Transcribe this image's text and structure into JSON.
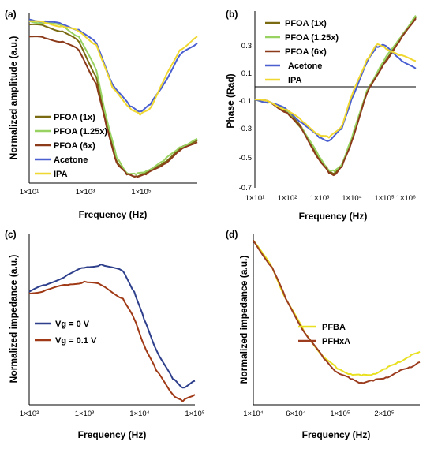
{
  "colors": {
    "pfoa_1x": "#7a6a12",
    "pfoa_125x": "#98d260",
    "pfoa_6x": "#8b3a1a",
    "acetone": "#4a5fd0",
    "ipa": "#f0d830",
    "vg0": "#2e3f8c",
    "vg01": "#a03a16",
    "pfba": "#e8e020",
    "pfhxa": "#9b3d1e",
    "spike_noise": "#e86a9a"
  },
  "chart_data": [
    {
      "panel": "(a)",
      "type": "line",
      "xscale": "log",
      "xlim": [
        10,
        1000000
      ],
      "ylim": [
        0,
        1
      ],
      "xlabel": "Frequency (Hz)",
      "ylabel": "Normalized amplitude (a.u.)",
      "xticks": [
        "1×10¹",
        "1×10³",
        "1×10⁵"
      ],
      "legend": [
        "PFOA (1x)",
        "PFOA (1.25x)",
        "PFOA (6x)",
        "Acetone",
        "IPA"
      ],
      "series": [
        {
          "name": "PFOA (1x)",
          "x": [
            10,
            30,
            100,
            300,
            1000,
            2000,
            4000,
            8000,
            15000,
            30000,
            100000,
            300000,
            1000000
          ],
          "y": [
            0.93,
            0.92,
            0.89,
            0.83,
            0.62,
            0.35,
            0.13,
            0.05,
            0.04,
            0.06,
            0.12,
            0.2,
            0.25
          ]
        },
        {
          "name": "PFOA (1.25x)",
          "x": [
            10,
            30,
            100,
            300,
            1000,
            2000,
            4000,
            8000,
            15000,
            30000,
            100000,
            300000,
            1000000
          ],
          "y": [
            0.95,
            0.94,
            0.92,
            0.86,
            0.66,
            0.38,
            0.15,
            0.06,
            0.05,
            0.07,
            0.13,
            0.21,
            0.26
          ]
        },
        {
          "name": "PFOA (6x)",
          "x": [
            10,
            30,
            100,
            300,
            1000,
            2000,
            4000,
            8000,
            15000,
            30000,
            100000,
            300000,
            1000000
          ],
          "y": [
            0.86,
            0.85,
            0.83,
            0.78,
            0.58,
            0.33,
            0.12,
            0.05,
            0.04,
            0.05,
            0.11,
            0.19,
            0.24
          ]
        },
        {
          "name": "Acetone",
          "x": [
            10,
            30,
            100,
            300,
            1000,
            3000,
            10000,
            20000,
            40000,
            100000,
            300000,
            1000000
          ],
          "y": [
            0.96,
            0.95,
            0.93,
            0.9,
            0.82,
            0.58,
            0.45,
            0.42,
            0.46,
            0.58,
            0.75,
            0.82
          ]
        },
        {
          "name": "IPA",
          "x": [
            10,
            30,
            100,
            300,
            1000,
            3000,
            10000,
            20000,
            40000,
            100000,
            300000,
            1000000
          ],
          "y": [
            0.95,
            0.94,
            0.92,
            0.89,
            0.81,
            0.56,
            0.44,
            0.4,
            0.44,
            0.6,
            0.78,
            0.86
          ]
        }
      ]
    },
    {
      "panel": "(b)",
      "type": "line",
      "xscale": "log",
      "xlim": [
        10,
        1000000
      ],
      "ylim": [
        -0.7,
        0.5
      ],
      "xlabel": "Frequency (Hz)",
      "ylabel": "Phase (Rad)",
      "xticks": [
        "1×10¹",
        "1×10²",
        "1×10³",
        "1×10⁴",
        "1×10⁵",
        "1×10⁶"
      ],
      "yticks": [
        "0.3",
        "0.1",
        "-0.1",
        "-0.3",
        "-0.5",
        "-0.7"
      ],
      "legend": [
        "PFOA (1x)",
        "PFOA (1.25x)",
        "PFOA (6x)",
        "Acetone",
        "IPA"
      ],
      "series": [
        {
          "name": "PFOA (1x)",
          "x": [
            10,
            30,
            100,
            300,
            1000,
            2000,
            3000,
            5000,
            10000,
            30000,
            100000,
            300000,
            1000000
          ],
          "y": [
            -0.1,
            -0.12,
            -0.18,
            -0.3,
            -0.5,
            -0.59,
            -0.6,
            -0.55,
            -0.38,
            -0.05,
            0.15,
            0.3,
            0.46
          ]
        },
        {
          "name": "PFOA (1.25x)",
          "x": [
            10,
            30,
            100,
            300,
            1000,
            2000,
            3000,
            5000,
            10000,
            30000,
            100000,
            300000,
            1000000
          ],
          "y": [
            -0.1,
            -0.12,
            -0.18,
            -0.3,
            -0.49,
            -0.58,
            -0.59,
            -0.54,
            -0.37,
            -0.04,
            0.16,
            0.31,
            0.47
          ]
        },
        {
          "name": "PFOA (6x)",
          "x": [
            10,
            30,
            100,
            300,
            1000,
            2000,
            3000,
            5000,
            10000,
            30000,
            100000,
            300000,
            1000000
          ],
          "y": [
            -0.1,
            -0.12,
            -0.19,
            -0.31,
            -0.51,
            -0.6,
            -0.61,
            -0.56,
            -0.39,
            -0.06,
            0.14,
            0.29,
            0.45
          ]
        },
        {
          "name": "Acetone",
          "x": [
            10,
            30,
            100,
            300,
            1000,
            2000,
            5000,
            10000,
            30000,
            60000,
            100000,
            300000,
            1000000
          ],
          "y": [
            -0.1,
            -0.12,
            -0.17,
            -0.26,
            -0.36,
            -0.38,
            -0.3,
            -0.1,
            0.15,
            0.26,
            0.27,
            0.18,
            0.11
          ]
        },
        {
          "name": "IPA",
          "x": [
            10,
            30,
            100,
            300,
            1000,
            2000,
            5000,
            10000,
            30000,
            60000,
            100000,
            300000,
            1000000
          ],
          "y": [
            -0.1,
            -0.12,
            -0.17,
            -0.25,
            -0.34,
            -0.36,
            -0.28,
            -0.08,
            0.17,
            0.27,
            0.26,
            0.2,
            0.16
          ]
        }
      ]
    },
    {
      "panel": "(c)",
      "type": "line",
      "xscale": "log",
      "xlim": [
        100,
        100000
      ],
      "ylim": [
        0,
        1
      ],
      "xlabel": "Frequency (Hz)",
      "ylabel": "Normalized impedance (a.u.)",
      "xticks": [
        "1×10²",
        "1×10³",
        "1×10⁴",
        "1×10⁵"
      ],
      "legend": [
        "Vg = 0 V",
        "Vg = 0.1 V"
      ],
      "series": [
        {
          "name": "Vg = 0 V",
          "x": [
            100,
            200,
            500,
            1000,
            2000,
            5000,
            8000,
            12000,
            20000,
            40000,
            60000,
            100000
          ],
          "y": [
            0.66,
            0.7,
            0.76,
            0.8,
            0.82,
            0.78,
            0.66,
            0.5,
            0.32,
            0.15,
            0.1,
            0.14
          ]
        },
        {
          "name": "Vg = 0.1 V",
          "x": [
            100,
            200,
            500,
            1000,
            2000,
            5000,
            8000,
            12000,
            20000,
            40000,
            60000,
            100000
          ],
          "y": [
            0.65,
            0.67,
            0.7,
            0.72,
            0.7,
            0.62,
            0.5,
            0.35,
            0.2,
            0.06,
            0.02,
            0.06
          ]
        }
      ]
    },
    {
      "panel": "(d)",
      "type": "line",
      "xscale": "log",
      "xlim": [
        10000,
        350000
      ],
      "ylim": [
        0,
        1
      ],
      "xlabel": "Frequency (Hz)",
      "ylabel": "Normalized impedance (a.u.)",
      "xticks": [
        "1×10⁴",
        "6×10⁴",
        "1×10⁵",
        "2×10⁵"
      ],
      "legend": [
        "PFBA",
        "PFHxA"
      ],
      "series": [
        {
          "name": "PFBA",
          "x": [
            10000,
            15000,
            20000,
            30000,
            45000,
            60000,
            80000,
            100000,
            130000,
            170000,
            220000,
            280000,
            350000
          ],
          "y": [
            0.96,
            0.8,
            0.62,
            0.42,
            0.28,
            0.21,
            0.18,
            0.17,
            0.18,
            0.21,
            0.25,
            0.28,
            0.31
          ]
        },
        {
          "name": "PFHxA",
          "x": [
            10000,
            15000,
            20000,
            30000,
            45000,
            60000,
            80000,
            100000,
            130000,
            170000,
            220000,
            280000,
            350000
          ],
          "y": [
            0.96,
            0.8,
            0.62,
            0.42,
            0.27,
            0.19,
            0.15,
            0.13,
            0.14,
            0.16,
            0.19,
            0.22,
            0.25
          ]
        }
      ]
    }
  ]
}
